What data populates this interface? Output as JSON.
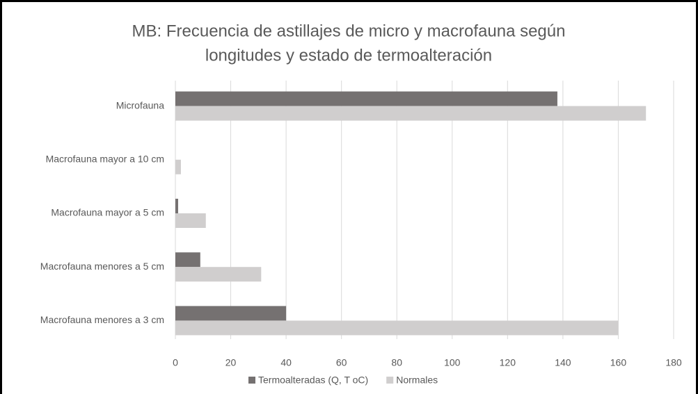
{
  "chart_data": {
    "type": "hbar",
    "title": [
      "MB: Frecuencia de astillajes de micro y macrofauna según",
      "longitudes y estado de termoalteración"
    ],
    "categories": [
      "Microfauna",
      "Macrofauna mayor a 10 cm",
      "Macrofauna mayor a 5 cm",
      "Macrofauna menores a 5 cm",
      "Macrofauna menores a 3 cm"
    ],
    "series": [
      {
        "name": "Termoalteradas (Q, T oC)",
        "color": "#757171",
        "values": [
          138,
          0,
          1,
          9,
          40
        ]
      },
      {
        "name": "Normales",
        "color": "#d0cece",
        "values": [
          170,
          2,
          11,
          31,
          160
        ]
      }
    ],
    "xlim": [
      0,
      180
    ],
    "xticks": [
      0,
      20,
      40,
      60,
      80,
      100,
      120,
      140,
      160,
      180
    ],
    "grid": true,
    "legend": "bottom"
  }
}
